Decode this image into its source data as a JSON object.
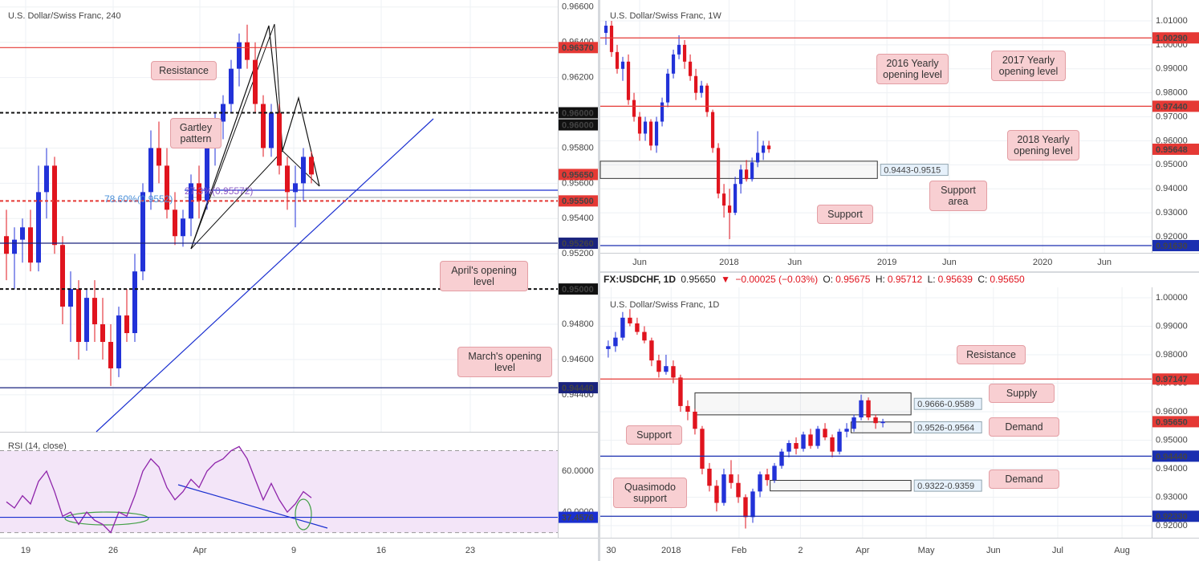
{
  "header": {
    "symbol": "FX:USDCHF, 1D",
    "price": "0.95650",
    "arrow": "▼",
    "change": "−0.00025 (−0.03%)",
    "open_label": "O:",
    "open": "0.95675",
    "high_label": "H:",
    "high": "0.95712",
    "low_label": "L:",
    "low": "0.95639",
    "close_label": "C:",
    "close": "0.95650"
  },
  "chart_data": [
    {
      "type": "candlestick",
      "title": "U.S. Dollar/Swiss Franc, 240",
      "grid": true,
      "up_color": "#2232d8",
      "down_color": "#e0141e",
      "xlim": [
        -0.8,
        68.7
      ],
      "xticks": [
        {
          "value": 2.4,
          "label": "19"
        },
        {
          "value": 13.3,
          "label": "26"
        },
        {
          "value": 24.1,
          "label": "Apr"
        },
        {
          "value": 35.8,
          "label": "9"
        },
        {
          "value": 46.7,
          "label": "16"
        },
        {
          "value": 57.8,
          "label": "23"
        }
      ],
      "ylim": [
        0.9419,
        0.9664
      ],
      "yticks": [
        {
          "value": 0.966,
          "label": "0.96600"
        },
        {
          "value": 0.964,
          "label": "0.96400"
        },
        {
          "value": 0.962,
          "label": "0.96200"
        },
        {
          "value": 0.96,
          "label": "0.96000"
        },
        {
          "value": 0.958,
          "label": "0.95800"
        },
        {
          "value": 0.956,
          "label": "0.95600"
        },
        {
          "value": 0.954,
          "label": "0.95400"
        },
        {
          "value": 0.952,
          "label": "0.95200"
        },
        {
          "value": 0.95,
          "label": "0.95000"
        },
        {
          "value": 0.948,
          "label": "0.94800"
        },
        {
          "value": 0.946,
          "label": "0.94600"
        },
        {
          "value": 0.944,
          "label": "0.94400"
        }
      ],
      "open": [
        0.953,
        0.952,
        0.9528,
        0.9535,
        0.9515,
        0.9555,
        0.957,
        0.9525,
        0.949,
        0.95,
        0.947,
        0.9495,
        0.948,
        0.947,
        0.9455,
        0.9485,
        0.9475,
        0.951,
        0.9555,
        0.958,
        0.957,
        0.9545,
        0.953,
        0.954,
        0.956,
        0.955,
        0.958,
        0.9595,
        0.9605,
        0.9625,
        0.964,
        0.963,
        0.9605,
        0.958,
        0.96,
        0.957,
        0.9555,
        0.956,
        0.9575
      ],
      "high": [
        0.9545,
        0.9535,
        0.954,
        0.9545,
        0.957,
        0.958,
        0.9575,
        0.953,
        0.951,
        0.9505,
        0.95,
        0.9505,
        0.9495,
        0.948,
        0.949,
        0.95,
        0.952,
        0.956,
        0.959,
        0.9595,
        0.958,
        0.9555,
        0.9545,
        0.9565,
        0.957,
        0.9585,
        0.96,
        0.961,
        0.963,
        0.9645,
        0.965,
        0.964,
        0.961,
        0.9605,
        0.9605,
        0.9575,
        0.957,
        0.958,
        0.9578
      ],
      "low": [
        0.9505,
        0.95,
        0.9515,
        0.951,
        0.951,
        0.954,
        0.952,
        0.948,
        0.947,
        0.946,
        0.9465,
        0.947,
        0.946,
        0.9445,
        0.945,
        0.947,
        0.947,
        0.9505,
        0.9545,
        0.956,
        0.954,
        0.9525,
        0.9524,
        0.953,
        0.954,
        0.9545,
        0.957,
        0.9585,
        0.96,
        0.9615,
        0.9625,
        0.96,
        0.9575,
        0.9575,
        0.9565,
        0.9545,
        0.9535,
        0.955,
        0.956
      ],
      "close": [
        0.952,
        0.9528,
        0.9535,
        0.9515,
        0.9555,
        0.957,
        0.9525,
        0.949,
        0.95,
        0.947,
        0.9495,
        0.948,
        0.947,
        0.9455,
        0.9485,
        0.9475,
        0.951,
        0.9555,
        0.958,
        0.957,
        0.9545,
        0.953,
        0.954,
        0.956,
        0.955,
        0.958,
        0.9595,
        0.9605,
        0.9625,
        0.964,
        0.963,
        0.9605,
        0.958,
        0.96,
        0.957,
        0.9555,
        0.956,
        0.9575,
        0.9565
      ],
      "levels": [
        {
          "value": 0.9637,
          "label": "0.96370",
          "color": "#e53935",
          "style": "solid"
        },
        {
          "value": 0.96,
          "label": "0.96000",
          "color": "#111111",
          "style": "dashed"
        },
        {
          "value": 0.96,
          "label": "0.96000",
          "color": "#111111",
          "style": "none"
        },
        {
          "value": 0.9565,
          "label": "0.95650",
          "color": "#e53935",
          "style": "none"
        },
        {
          "value": 0.955,
          "label": "0.95500",
          "color": "#e53935",
          "style": "dashed"
        },
        {
          "value": 0.9526,
          "label": "0.95260",
          "color": "#1a237e",
          "style": "solid"
        },
        {
          "value": 0.95,
          "label": "0.95000",
          "color": "#111111",
          "style": "dashed"
        },
        {
          "value": 0.9444,
          "label": "0.94440",
          "color": "#1a237e",
          "style": "solid"
        }
      ],
      "annotations": [
        "Resistance",
        "Gartley pattern",
        "April's opening level",
        "March's opening level",
        "78.60%(0.9552)",
        "27.3%(0.95572)"
      ]
    },
    {
      "type": "line",
      "title": "RSI (14, close)",
      "color": "#8e24aa",
      "xlim": [
        -0.8,
        68.7
      ],
      "ylim": [
        27.5,
        79.2
      ],
      "band": [
        30,
        70
      ],
      "band_color": "#f3e5f8",
      "yticks": [
        {
          "value": 60,
          "label": "60.0000"
        },
        {
          "value": 40,
          "label": "40.0000"
        }
      ],
      "values": [
        45,
        42,
        48,
        44,
        55,
        60,
        50,
        38,
        40,
        34,
        40,
        36,
        34,
        30,
        40,
        38,
        48,
        60,
        66,
        62,
        52,
        46,
        50,
        56,
        52,
        60,
        64,
        66,
        70,
        72,
        66,
        56,
        46,
        54,
        46,
        40,
        44,
        50,
        47
      ],
      "levels": [
        {
          "value": 37.4576,
          "label": "37.4576",
          "color": "#1a2fd0",
          "style": "solid"
        }
      ]
    },
    {
      "type": "candlestick",
      "title": "U.S. Dollar/Swiss Franc, 1W",
      "grid": true,
      "up_color": "#2232d8",
      "down_color": "#e0141e",
      "xlim": [
        -1,
        97.1
      ],
      "xticks": [
        {
          "value": 6,
          "label": "Jun"
        },
        {
          "value": 21.9,
          "label": "2018"
        },
        {
          "value": 33.6,
          "label": "Jun"
        },
        {
          "value": 50,
          "label": "2019"
        },
        {
          "value": 61.1,
          "label": "Jun"
        },
        {
          "value": 77.7,
          "label": "2020"
        },
        {
          "value": 88.7,
          "label": "Jun"
        }
      ],
      "ylim": [
        0.9133,
        1.0187
      ],
      "yticks": [
        {
          "value": 1.01,
          "label": "1.01000"
        },
        {
          "value": 1.0,
          "label": "1.00000"
        },
        {
          "value": 0.99,
          "label": "0.99000"
        },
        {
          "value": 0.98,
          "label": "0.98000"
        },
        {
          "value": 0.97,
          "label": "0.97000"
        },
        {
          "value": 0.96,
          "label": "0.96000"
        },
        {
          "value": 0.95,
          "label": "0.95000"
        },
        {
          "value": 0.94,
          "label": "0.94000"
        },
        {
          "value": 0.93,
          "label": "0.93000"
        },
        {
          "value": 0.92,
          "label": "0.92000"
        }
      ],
      "open": [
        1.005,
        1.008,
        0.997,
        0.99,
        0.993,
        0.977,
        0.97,
        0.963,
        0.968,
        0.958,
        0.968,
        0.976,
        0.988,
        0.996,
        1.0,
        0.993,
        0.987,
        0.98,
        0.983,
        0.972,
        0.957,
        0.938,
        0.933,
        0.93,
        0.942,
        0.948,
        0.944,
        0.951,
        0.955,
        0.958
      ],
      "high": [
        1.01,
        1.01,
        1.0,
        0.995,
        0.996,
        0.98,
        0.972,
        0.97,
        0.969,
        0.97,
        0.978,
        0.99,
        0.998,
        1.004,
        1.002,
        0.996,
        0.99,
        0.985,
        0.984,
        0.973,
        0.959,
        0.942,
        0.94,
        0.945,
        0.95,
        0.952,
        0.953,
        0.964,
        0.96,
        0.96
      ],
      "low": [
        1.0,
        0.995,
        0.988,
        0.985,
        0.975,
        0.968,
        0.96,
        0.96,
        0.956,
        0.955,
        0.966,
        0.974,
        0.986,
        0.994,
        0.99,
        0.985,
        0.977,
        0.978,
        0.97,
        0.955,
        0.936,
        0.928,
        0.919,
        0.929,
        0.938,
        0.943,
        0.943,
        0.949,
        0.952,
        0.955
      ],
      "close": [
        1.008,
        0.997,
        0.99,
        0.993,
        0.977,
        0.97,
        0.963,
        0.968,
        0.958,
        0.968,
        0.976,
        0.988,
        0.996,
        1.0,
        0.993,
        0.987,
        0.98,
        0.983,
        0.972,
        0.957,
        0.938,
        0.933,
        0.93,
        0.942,
        0.948,
        0.944,
        0.951,
        0.955,
        0.958,
        0.9565
      ],
      "zones": [
        {
          "label": "0.9443-0.9515",
          "low": 0.9443,
          "high": 0.9515,
          "from": -1,
          "to": 48.3
        }
      ],
      "levels": [
        {
          "value": 1.0029,
          "label": "1.00290",
          "color": "#e53935",
          "style": "solid"
        },
        {
          "value": 0.9744,
          "label": "0.97440",
          "color": "#e53935",
          "style": "solid"
        },
        {
          "value": 0.95648,
          "label": "0.95648",
          "color": "#e53935",
          "style": "none"
        },
        {
          "value": 0.9163,
          "label": "0.91630",
          "color": "#1a2fb0",
          "style": "solid"
        }
      ],
      "annotations": [
        "2016 Yearly opening level",
        "2017 Yearly opening level",
        "2018 Yearly opening level",
        "Support area",
        "Support"
      ]
    },
    {
      "type": "candlestick",
      "title": "U.S. Dollar/Swiss Franc, 1D",
      "grid": true,
      "up_color": "#2232d8",
      "down_color": "#e0141e",
      "xlim": [
        -1.1,
        75.2
      ],
      "xticks": [
        {
          "value": 0.4,
          "label": "30"
        },
        {
          "value": 8.7,
          "label": "2018"
        },
        {
          "value": 18.1,
          "label": "Feb"
        },
        {
          "value": 26.6,
          "label": "2"
        },
        {
          "value": 35.2,
          "label": "Apr"
        },
        {
          "value": 44,
          "label": "May"
        },
        {
          "value": 53.3,
          "label": "Jun"
        },
        {
          "value": 62.2,
          "label": "Jul"
        },
        {
          "value": 71.1,
          "label": "Aug"
        }
      ],
      "ylim": [
        0.91577,
        1.00366
      ],
      "yticks": [
        {
          "value": 1.0,
          "label": "1.00000"
        },
        {
          "value": 0.99,
          "label": "0.99000"
        },
        {
          "value": 0.98,
          "label": "0.98000"
        },
        {
          "value": 0.97,
          "label": "0.97000"
        },
        {
          "value": 0.96,
          "label": "0.96000"
        },
        {
          "value": 0.95,
          "label": "0.95000"
        },
        {
          "value": 0.94,
          "label": "0.94000"
        },
        {
          "value": 0.93,
          "label": "0.93000"
        },
        {
          "value": 0.92,
          "label": "0.92000"
        }
      ],
      "open": [
        0.982,
        0.983,
        0.986,
        0.993,
        0.991,
        0.988,
        0.985,
        0.978,
        0.974,
        0.976,
        0.972,
        0.962,
        0.96,
        0.954,
        0.94,
        0.934,
        0.928,
        0.938,
        0.935,
        0.93,
        0.923,
        0.932,
        0.938,
        0.936,
        0.941,
        0.946,
        0.949,
        0.947,
        0.952,
        0.948,
        0.954,
        0.951,
        0.946,
        0.953,
        0.954,
        0.958,
        0.964,
        0.958,
        0.956
      ],
      "high": [
        0.985,
        0.988,
        0.995,
        0.996,
        0.993,
        0.99,
        0.986,
        0.98,
        0.98,
        0.978,
        0.973,
        0.964,
        0.961,
        0.955,
        0.942,
        0.936,
        0.94,
        0.943,
        0.938,
        0.931,
        0.933,
        0.939,
        0.94,
        0.942,
        0.947,
        0.95,
        0.951,
        0.953,
        0.954,
        0.955,
        0.956,
        0.952,
        0.954,
        0.956,
        0.959,
        0.966,
        0.965,
        0.959,
        0.9575
      ],
      "low": [
        0.979,
        0.981,
        0.985,
        0.99,
        0.987,
        0.984,
        0.976,
        0.972,
        0.973,
        0.97,
        0.96,
        0.957,
        0.952,
        0.938,
        0.932,
        0.925,
        0.927,
        0.933,
        0.928,
        0.919,
        0.921,
        0.93,
        0.934,
        0.935,
        0.94,
        0.944,
        0.945,
        0.946,
        0.947,
        0.947,
        0.95,
        0.944,
        0.945,
        0.951,
        0.953,
        0.957,
        0.957,
        0.954,
        0.9545
      ],
      "close": [
        0.983,
        0.986,
        0.993,
        0.991,
        0.988,
        0.985,
        0.978,
        0.974,
        0.976,
        0.972,
        0.962,
        0.96,
        0.954,
        0.94,
        0.934,
        0.928,
        0.938,
        0.935,
        0.93,
        0.923,
        0.932,
        0.938,
        0.936,
        0.941,
        0.946,
        0.949,
        0.947,
        0.952,
        0.948,
        0.954,
        0.951,
        0.946,
        0.953,
        0.954,
        0.958,
        0.964,
        0.958,
        0.956,
        0.9565
      ],
      "zones": [
        {
          "label": "0.9666-0.9589",
          "low": 0.9589,
          "high": 0.9666,
          "from": 12,
          "to": 41.9
        },
        {
          "label": "0.9526-0.9564",
          "low": 0.9526,
          "high": 0.9564,
          "from": 33.6,
          "to": 41.9
        },
        {
          "label": "0.9322-0.9359",
          "low": 0.9322,
          "high": 0.9359,
          "from": 22.4,
          "to": 41.9
        }
      ],
      "levels": [
        {
          "value": 0.97147,
          "label": "0.97147",
          "color": "#e53935",
          "style": "solid"
        },
        {
          "value": 0.9565,
          "label": "0.95650",
          "color": "#e53935",
          "style": "none"
        },
        {
          "value": 0.9444,
          "label": "0.94440",
          "color": "#1a2fb0",
          "style": "solid"
        },
        {
          "value": 0.9233,
          "label": "0.92330",
          "color": "#1a2fb0",
          "style": "solid"
        }
      ],
      "annotations": [
        "Resistance",
        "Supply",
        "Demand",
        "Demand",
        "Support",
        "Quasimodo support"
      ]
    }
  ]
}
